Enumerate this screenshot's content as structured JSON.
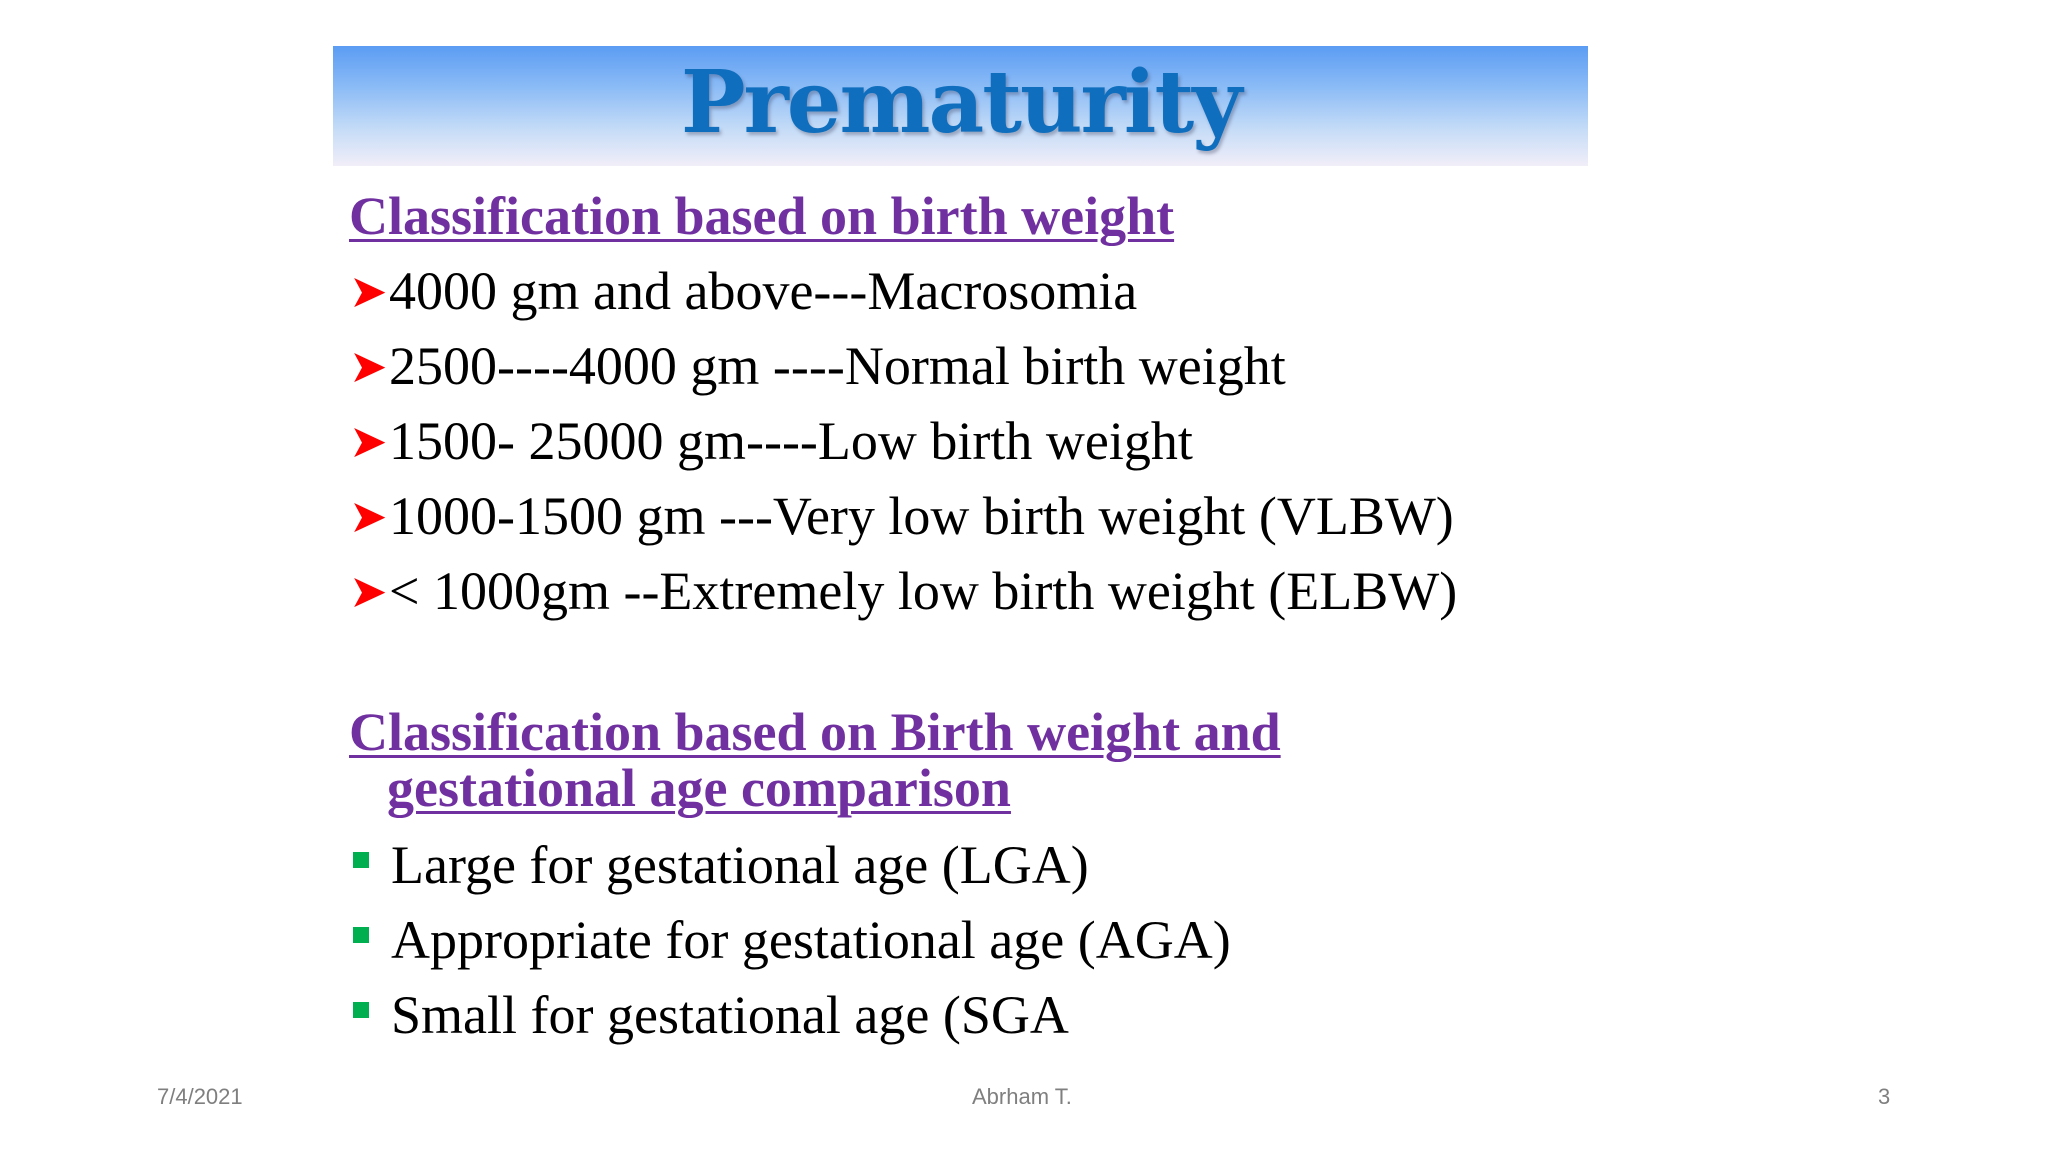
{
  "slide": {
    "title": "Prematurity",
    "section1": {
      "heading": "Classification based on birth weight",
      "items": [
        "4000 gm and above---Macrosomia",
        "2500----4000 gm ----Normal birth weight",
        "1500- 25000 gm----Low birth weight",
        "1000-1500 gm ---Very low birth weight (VLBW)",
        "< 1000gm --Extremely low birth weight (ELBW)"
      ]
    },
    "section2": {
      "heading_line1": "Classification based on Birth weight and",
      "heading_line2": "gestational age comparison",
      "items": [
        "Large for gestational age (LGA)",
        "Appropriate for gestational age (AGA)",
        "Small for gestational age (SGA"
      ]
    }
  },
  "footer": {
    "date": "7/4/2021",
    "author": "Abrham T.",
    "page": "3"
  },
  "colors": {
    "title": "#0f6fbe",
    "heading": "#7030a0",
    "arrow_bullet": "#ff0000",
    "square_bullet": "#00b050",
    "footer_text": "#7f7f7f"
  },
  "icons": {
    "section1_bullet": "red-arrowhead-icon",
    "section2_bullet": "green-square-icon"
  }
}
